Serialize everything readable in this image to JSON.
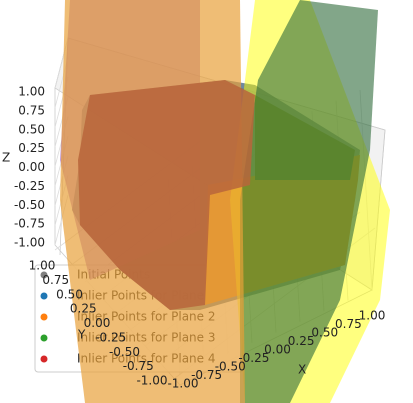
{
  "chart_data": {
    "type": "scatter3d",
    "xlabel": "X",
    "ylabel": "Y",
    "zlabel": "Z",
    "xlim": [
      -1,
      1
    ],
    "ylim": [
      -1,
      1
    ],
    "zlim": [
      -1,
      1
    ],
    "xticks": [
      {
        "value": -1,
        "label": "-1.00"
      },
      {
        "value": -0.75,
        "label": "-0.75"
      },
      {
        "value": -0.5,
        "label": "-0.50"
      },
      {
        "value": -0.25,
        "label": "-0.25"
      },
      {
        "value": 0,
        "label": "0.00"
      },
      {
        "value": 0.25,
        "label": "0.25"
      },
      {
        "value": 0.5,
        "label": "0.50"
      },
      {
        "value": 0.75,
        "label": "0.75"
      },
      {
        "value": 1,
        "label": "1.00"
      }
    ],
    "yticks": [
      {
        "value": -1,
        "label": "-1.00"
      },
      {
        "value": -0.75,
        "label": "-0.75"
      },
      {
        "value": -0.5,
        "label": "-0.50"
      },
      {
        "value": -0.25,
        "label": "-0.25"
      },
      {
        "value": 0,
        "label": "0.00"
      },
      {
        "value": 0.25,
        "label": "0.25"
      },
      {
        "value": 0.5,
        "label": "0.50"
      },
      {
        "value": 0.75,
        "label": "0.75"
      },
      {
        "value": 1,
        "label": "1.00"
      }
    ],
    "zticks": [
      {
        "value": -1,
        "label": "-1.00"
      },
      {
        "value": -0.75,
        "label": "-0.75"
      },
      {
        "value": -0.5,
        "label": "-0.50"
      },
      {
        "value": -0.25,
        "label": "-0.25"
      },
      {
        "value": 0,
        "label": "0.00"
      },
      {
        "value": 0.25,
        "label": "0.25"
      },
      {
        "value": 0.5,
        "label": "0.50"
      },
      {
        "value": 0.75,
        "label": "0.75"
      },
      {
        "value": 1,
        "label": "1.00"
      }
    ],
    "series": [
      {
        "name": "Initial Points",
        "color": "#7f7f7f"
      },
      {
        "name": "Inlier Points for Plane 1",
        "color": "#1f77b4"
      },
      {
        "name": "Inlier Points for Plane 2",
        "color": "#ff7f0e"
      },
      {
        "name": "Inlier Points for Plane 3",
        "color": "#2ca02c"
      },
      {
        "name": "Inlier Points for Plane 4",
        "color": "#d62728"
      }
    ]
  }
}
